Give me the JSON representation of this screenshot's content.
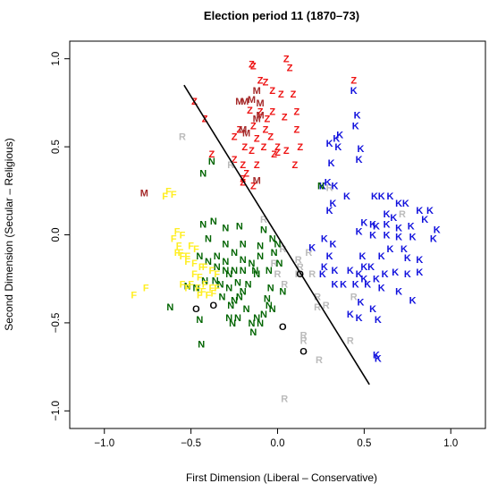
{
  "chart_data": {
    "type": "scatter",
    "title": "Election period 11 (1870–73)",
    "xlabel": "First Dimension (Liberal – Conservative)",
    "ylabel": "Second Dimension (Secular – Religious)",
    "xlim": [
      -1.2,
      1.2
    ],
    "ylim": [
      -1.1,
      1.1
    ],
    "xticks": [
      -1.0,
      -0.5,
      0.0,
      0.5,
      1.0
    ],
    "xtick_labels": [
      "−1.0",
      "−0.5",
      "0.0",
      "0.5",
      "1.0"
    ],
    "yticks": [
      -1.0,
      -0.5,
      0.0,
      0.5,
      1.0
    ],
    "ytick_labels": [
      "−1.0",
      "−0.5",
      "0.0",
      "0.5",
      "1.0"
    ],
    "grid": false,
    "cutting_line": {
      "x": [
        -0.54,
        0.53
      ],
      "y": [
        0.85,
        -0.85
      ],
      "color": "#000000"
    },
    "series": [
      {
        "name": "Z",
        "color": "#ee1111",
        "points": [
          [
            -0.15,
            0.97
          ],
          [
            -0.14,
            0.96
          ],
          [
            0.05,
            1.0
          ],
          [
            0.07,
            0.95
          ],
          [
            -0.1,
            0.88
          ],
          [
            -0.07,
            0.87
          ],
          [
            -0.03,
            0.82
          ],
          [
            0.02,
            0.8
          ],
          [
            0.09,
            0.8
          ],
          [
            0.44,
            0.88
          ],
          [
            -0.48,
            0.76
          ],
          [
            -0.42,
            0.66
          ],
          [
            -0.16,
            0.71
          ],
          [
            -0.1,
            0.7
          ],
          [
            -0.03,
            0.7
          ],
          [
            0.04,
            0.67
          ],
          [
            0.11,
            0.7
          ],
          [
            -0.06,
            0.66
          ],
          [
            -0.22,
            0.6
          ],
          [
            -0.14,
            0.62
          ],
          [
            -0.07,
            0.6
          ],
          [
            -0.04,
            0.56
          ],
          [
            -0.12,
            0.55
          ],
          [
            -0.25,
            0.56
          ],
          [
            -0.19,
            0.5
          ],
          [
            -0.15,
            0.48
          ],
          [
            -0.08,
            0.5
          ],
          [
            -0.02,
            0.46
          ],
          [
            0.0,
            0.5
          ],
          [
            0.05,
            0.48
          ],
          [
            0.11,
            0.6
          ],
          [
            -0.38,
            0.46
          ],
          [
            -0.25,
            0.43
          ],
          [
            -0.2,
            0.4
          ],
          [
            -0.18,
            0.35
          ],
          [
            -0.12,
            0.4
          ],
          [
            0.1,
            0.4
          ],
          [
            -0.2,
            0.3
          ],
          [
            -0.14,
            0.28
          ],
          [
            -0.2,
            0.32
          ],
          [
            0.13,
            0.5
          ],
          [
            0.0,
            0.47
          ]
        ]
      },
      {
        "name": "M",
        "color": "#a52a2a",
        "points": [
          [
            -0.12,
            0.82
          ],
          [
            -0.22,
            0.76
          ],
          [
            -0.19,
            0.76
          ],
          [
            -0.15,
            0.77
          ],
          [
            -0.1,
            0.75
          ],
          [
            -0.12,
            0.66
          ],
          [
            -0.1,
            0.68
          ],
          [
            -0.2,
            0.6
          ],
          [
            -0.18,
            0.58
          ],
          [
            -0.12,
            0.31
          ],
          [
            -0.77,
            0.24
          ]
        ]
      },
      {
        "name": "R",
        "color": "#bbbbbb",
        "points": [
          [
            -0.55,
            0.56
          ],
          [
            -0.27,
            0.4
          ],
          [
            0.3,
            0.27
          ],
          [
            -0.08,
            0.09
          ],
          [
            0.03,
            -0.08
          ],
          [
            0.18,
            -0.1
          ],
          [
            0.12,
            -0.14
          ],
          [
            -0.02,
            -0.16
          ],
          [
            0.12,
            -0.22
          ],
          [
            0.2,
            -0.22
          ],
          [
            0.04,
            -0.28
          ],
          [
            0.23,
            -0.35
          ],
          [
            0.28,
            -0.4
          ],
          [
            0.15,
            -0.57
          ],
          [
            0.15,
            -0.6
          ],
          [
            0.42,
            -0.6
          ],
          [
            0.24,
            -0.71
          ],
          [
            0.72,
            0.12
          ],
          [
            0.44,
            -0.35
          ],
          [
            0.04,
            -0.93
          ],
          [
            0.13,
            -0.18
          ],
          [
            0.0,
            -0.22
          ],
          [
            0.23,
            -0.41
          ]
        ]
      },
      {
        "name": "K",
        "color": "#1111dd",
        "points": [
          [
            0.44,
            0.82
          ],
          [
            0.46,
            0.68
          ],
          [
            0.45,
            0.62
          ],
          [
            0.36,
            0.57
          ],
          [
            0.34,
            0.55
          ],
          [
            0.3,
            0.52
          ],
          [
            0.35,
            0.5
          ],
          [
            0.48,
            0.49
          ],
          [
            0.47,
            0.43
          ],
          [
            0.31,
            0.41
          ],
          [
            0.29,
            0.3
          ],
          [
            0.33,
            0.28
          ],
          [
            0.26,
            0.28
          ],
          [
            0.4,
            0.22
          ],
          [
            0.56,
            0.22
          ],
          [
            0.6,
            0.22
          ],
          [
            0.65,
            0.22
          ],
          [
            0.7,
            0.18
          ],
          [
            0.74,
            0.18
          ],
          [
            0.32,
            0.18
          ],
          [
            0.3,
            0.14
          ],
          [
            0.82,
            0.14
          ],
          [
            0.88,
            0.14
          ],
          [
            0.63,
            0.12
          ],
          [
            0.67,
            0.1
          ],
          [
            0.85,
            0.09
          ],
          [
            0.5,
            0.07
          ],
          [
            0.55,
            0.06
          ],
          [
            0.57,
            0.05
          ],
          [
            0.63,
            0.06
          ],
          [
            0.7,
            0.04
          ],
          [
            0.77,
            0.05
          ],
          [
            0.92,
            0.03
          ],
          [
            0.47,
            0.02
          ],
          [
            0.55,
            0.0
          ],
          [
            0.63,
            0.0
          ],
          [
            0.7,
            -0.01
          ],
          [
            0.78,
            -0.01
          ],
          [
            0.9,
            -0.02
          ],
          [
            0.27,
            -0.02
          ],
          [
            0.32,
            -0.05
          ],
          [
            0.2,
            -0.07
          ],
          [
            0.3,
            -0.12
          ],
          [
            0.49,
            -0.12
          ],
          [
            0.6,
            -0.12
          ],
          [
            0.75,
            -0.13
          ],
          [
            0.82,
            -0.14
          ],
          [
            0.27,
            -0.18
          ],
          [
            0.33,
            -0.2
          ],
          [
            0.42,
            -0.2
          ],
          [
            0.47,
            -0.22
          ],
          [
            0.5,
            -0.18
          ],
          [
            0.54,
            -0.18
          ],
          [
            0.62,
            -0.22
          ],
          [
            0.68,
            -0.21
          ],
          [
            0.75,
            -0.22
          ],
          [
            0.82,
            -0.21
          ],
          [
            0.38,
            -0.28
          ],
          [
            0.45,
            -0.28
          ],
          [
            0.52,
            -0.28
          ],
          [
            0.6,
            -0.3
          ],
          [
            0.7,
            -0.32
          ],
          [
            0.78,
            -0.37
          ],
          [
            0.48,
            -0.38
          ],
          [
            0.55,
            -0.42
          ],
          [
            0.58,
            -0.48
          ],
          [
            0.42,
            -0.45
          ],
          [
            0.47,
            -0.47
          ],
          [
            0.57,
            -0.68
          ],
          [
            0.58,
            -0.7
          ],
          [
            0.33,
            -0.28
          ],
          [
            0.26,
            -0.22
          ],
          [
            0.5,
            -0.25
          ],
          [
            0.57,
            -0.25
          ],
          [
            0.73,
            -0.08
          ],
          [
            0.65,
            -0.08
          ]
        ]
      },
      {
        "name": "N",
        "color": "#006400",
        "points": [
          [
            -0.38,
            0.42
          ],
          [
            -0.43,
            0.35
          ],
          [
            0.25,
            0.28
          ],
          [
            -0.37,
            0.08
          ],
          [
            -0.43,
            0.06
          ],
          [
            -0.3,
            0.04
          ],
          [
            -0.22,
            0.05
          ],
          [
            -0.08,
            0.03
          ],
          [
            -0.4,
            -0.02
          ],
          [
            -0.3,
            -0.05
          ],
          [
            -0.2,
            -0.05
          ],
          [
            -0.1,
            -0.06
          ],
          [
            -0.03,
            -0.02
          ],
          [
            -0.45,
            -0.12
          ],
          [
            -0.4,
            -0.15
          ],
          [
            -0.35,
            -0.12
          ],
          [
            -0.3,
            -0.15
          ],
          [
            -0.25,
            -0.1
          ],
          [
            -0.2,
            -0.14
          ],
          [
            -0.15,
            -0.16
          ],
          [
            -0.1,
            -0.12
          ],
          [
            -0.02,
            -0.1
          ],
          [
            -0.35,
            -0.18
          ],
          [
            -0.3,
            -0.2
          ],
          [
            -0.28,
            -0.22
          ],
          [
            -0.25,
            -0.2
          ],
          [
            -0.2,
            -0.2
          ],
          [
            -0.12,
            -0.22
          ],
          [
            -0.05,
            -0.2
          ],
          [
            -0.52,
            -0.29
          ],
          [
            -0.42,
            -0.26
          ],
          [
            -0.36,
            -0.26
          ],
          [
            -0.33,
            -0.28
          ],
          [
            -0.28,
            -0.3
          ],
          [
            -0.23,
            -0.27
          ],
          [
            -0.17,
            -0.28
          ],
          [
            -0.04,
            -0.3
          ],
          [
            0.03,
            -0.32
          ],
          [
            -0.47,
            -0.3
          ],
          [
            -0.25,
            -0.37
          ],
          [
            -0.22,
            -0.35
          ],
          [
            -0.27,
            -0.4
          ],
          [
            -0.18,
            -0.42
          ],
          [
            -0.06,
            -0.36
          ],
          [
            -0.45,
            -0.48
          ],
          [
            -0.28,
            -0.47
          ],
          [
            -0.23,
            -0.47
          ],
          [
            -0.15,
            -0.5
          ],
          [
            -0.12,
            -0.47
          ],
          [
            -0.08,
            -0.45
          ],
          [
            -0.03,
            -0.42
          ],
          [
            -0.44,
            -0.62
          ],
          [
            -0.26,
            -0.5
          ],
          [
            -0.1,
            -0.5
          ],
          [
            -0.14,
            -0.55
          ],
          [
            -0.05,
            -0.4
          ],
          [
            -0.13,
            -0.2
          ],
          [
            0.01,
            -0.16
          ],
          [
            -0.62,
            -0.41
          ],
          [
            -0.32,
            -0.35
          ],
          [
            0.0,
            -0.05
          ],
          [
            -0.2,
            -0.32
          ]
        ]
      },
      {
        "name": "F",
        "color": "#ffee22",
        "points": [
          [
            -0.65,
            0.22
          ],
          [
            -0.6,
            0.23
          ],
          [
            -0.63,
            0.25
          ],
          [
            -0.58,
            0.02
          ],
          [
            -0.55,
            0.0
          ],
          [
            -0.6,
            -0.02
          ],
          [
            -0.57,
            -0.06
          ],
          [
            -0.56,
            -0.1
          ],
          [
            -0.58,
            -0.1
          ],
          [
            -0.55,
            -0.12
          ],
          [
            -0.52,
            -0.12
          ],
          [
            -0.5,
            -0.06
          ],
          [
            -0.47,
            -0.08
          ],
          [
            -0.52,
            -0.15
          ],
          [
            -0.48,
            -0.16
          ],
          [
            -0.44,
            -0.18
          ],
          [
            -0.42,
            -0.18
          ],
          [
            -0.38,
            -0.2
          ],
          [
            -0.45,
            -0.24
          ],
          [
            -0.42,
            -0.28
          ],
          [
            -0.5,
            -0.28
          ],
          [
            -0.46,
            -0.3
          ],
          [
            -0.43,
            -0.32
          ],
          [
            -0.38,
            -0.3
          ],
          [
            -0.35,
            -0.3
          ],
          [
            -0.55,
            -0.28
          ],
          [
            -0.52,
            -0.3
          ],
          [
            -0.45,
            -0.34
          ],
          [
            -0.4,
            -0.34
          ],
          [
            -0.37,
            -0.33
          ],
          [
            -0.76,
            -0.3
          ],
          [
            -0.83,
            -0.34
          ],
          [
            -0.35,
            -0.22
          ],
          [
            -0.48,
            -0.22
          ]
        ]
      },
      {
        "name": "O",
        "color": "#000000",
        "points": [
          [
            -0.47,
            -0.42
          ],
          [
            -0.37,
            -0.4
          ],
          [
            0.03,
            -0.52
          ],
          [
            0.13,
            -0.22
          ],
          [
            0.15,
            -0.66
          ]
        ]
      }
    ]
  }
}
